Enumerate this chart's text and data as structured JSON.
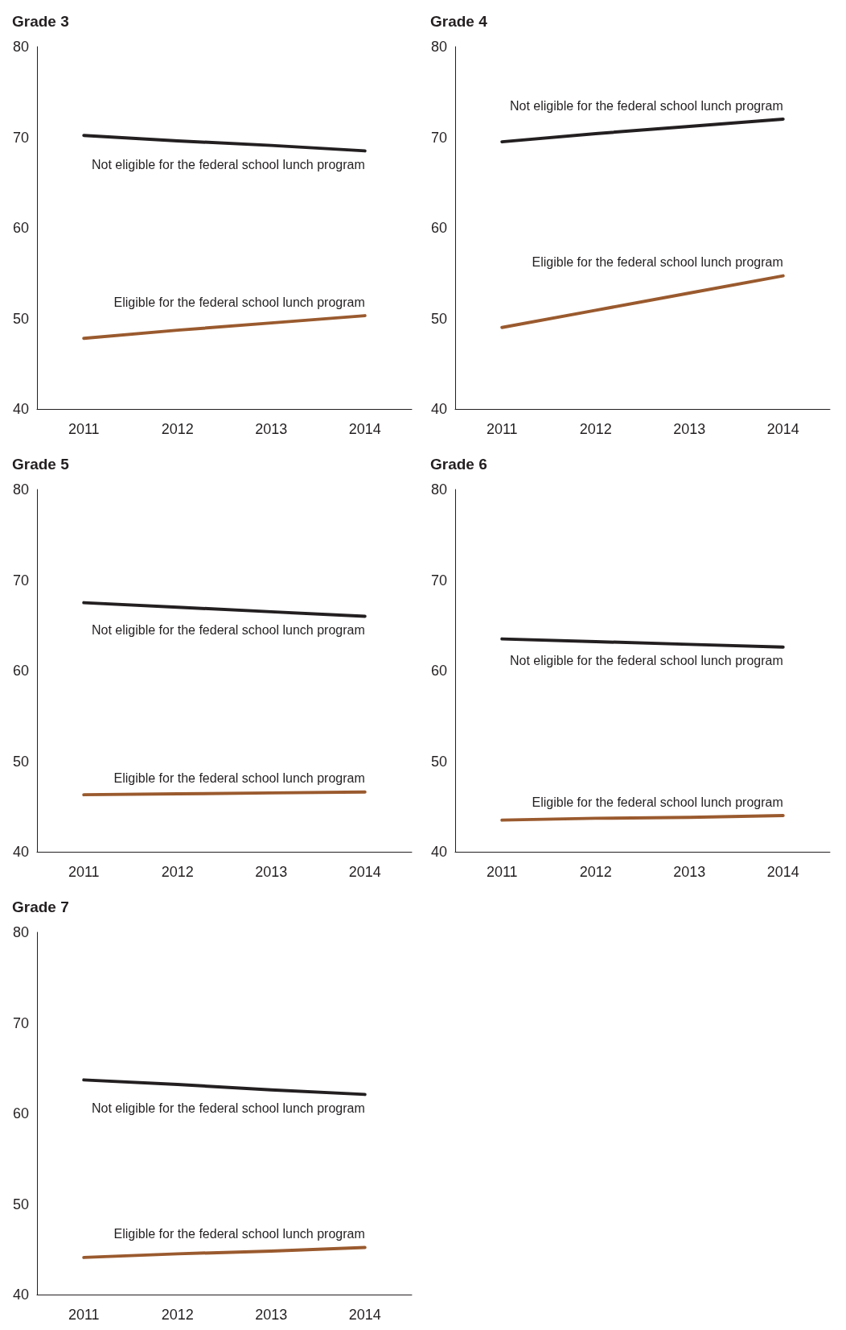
{
  "chart_data": [
    {
      "type": "line",
      "title": "Grade 3",
      "categories": [
        "2011",
        "2012",
        "2013",
        "2014"
      ],
      "ylim": [
        40,
        80
      ],
      "yticks": [
        40,
        50,
        60,
        70,
        80
      ],
      "grid": false,
      "legend": false,
      "series": [
        {
          "name": "Not eligible for the federal school lunch program",
          "color": "#231f20",
          "values": [
            70.2,
            69.6,
            69.1,
            68.5
          ]
        },
        {
          "name": "Eligible for the federal school lunch program",
          "color": "#9a5a2e",
          "values": [
            47.8,
            48.7,
            49.5,
            50.3
          ]
        }
      ]
    },
    {
      "type": "line",
      "title": "Grade 4",
      "categories": [
        "2011",
        "2012",
        "2013",
        "2014"
      ],
      "ylim": [
        40,
        80
      ],
      "yticks": [
        40,
        50,
        60,
        70,
        80
      ],
      "grid": false,
      "legend": false,
      "series": [
        {
          "name": "Not eligible for the federal school lunch program",
          "color": "#231f20",
          "values": [
            69.5,
            70.4,
            71.2,
            72.0
          ]
        },
        {
          "name": "Eligible for the federal school lunch program",
          "color": "#9a5a2e",
          "values": [
            49.0,
            50.9,
            52.8,
            54.7
          ]
        }
      ]
    },
    {
      "type": "line",
      "title": "Grade 5",
      "categories": [
        "2011",
        "2012",
        "2013",
        "2014"
      ],
      "ylim": [
        40,
        80
      ],
      "yticks": [
        40,
        50,
        60,
        70,
        80
      ],
      "grid": false,
      "legend": false,
      "series": [
        {
          "name": "Not eligible for the federal school lunch program",
          "color": "#231f20",
          "values": [
            67.5,
            67.0,
            66.5,
            66.0
          ]
        },
        {
          "name": "Eligible for the federal school lunch program",
          "color": "#9a5a2e",
          "values": [
            46.3,
            46.4,
            46.5,
            46.6
          ]
        }
      ]
    },
    {
      "type": "line",
      "title": "Grade 6",
      "categories": [
        "2011",
        "2012",
        "2013",
        "2014"
      ],
      "ylim": [
        40,
        80
      ],
      "yticks": [
        40,
        50,
        60,
        70,
        80
      ],
      "grid": false,
      "legend": false,
      "series": [
        {
          "name": "Not eligible for the federal school lunch program",
          "color": "#231f20",
          "values": [
            63.5,
            63.2,
            62.9,
            62.6
          ]
        },
        {
          "name": "Eligible for the federal school lunch program",
          "color": "#9a5a2e",
          "values": [
            43.5,
            43.7,
            43.8,
            44.0
          ]
        }
      ]
    },
    {
      "type": "line",
      "title": "Grade 7",
      "categories": [
        "2011",
        "2012",
        "2013",
        "2014"
      ],
      "ylim": [
        40,
        80
      ],
      "yticks": [
        40,
        50,
        60,
        70,
        80
      ],
      "grid": false,
      "legend": false,
      "series": [
        {
          "name": "Not eligible for the federal school lunch program",
          "color": "#231f20",
          "values": [
            63.7,
            63.2,
            62.6,
            62.1
          ]
        },
        {
          "name": "Eligible for the federal school lunch program",
          "color": "#9a5a2e",
          "values": [
            44.1,
            44.5,
            44.8,
            45.2
          ]
        }
      ]
    }
  ]
}
